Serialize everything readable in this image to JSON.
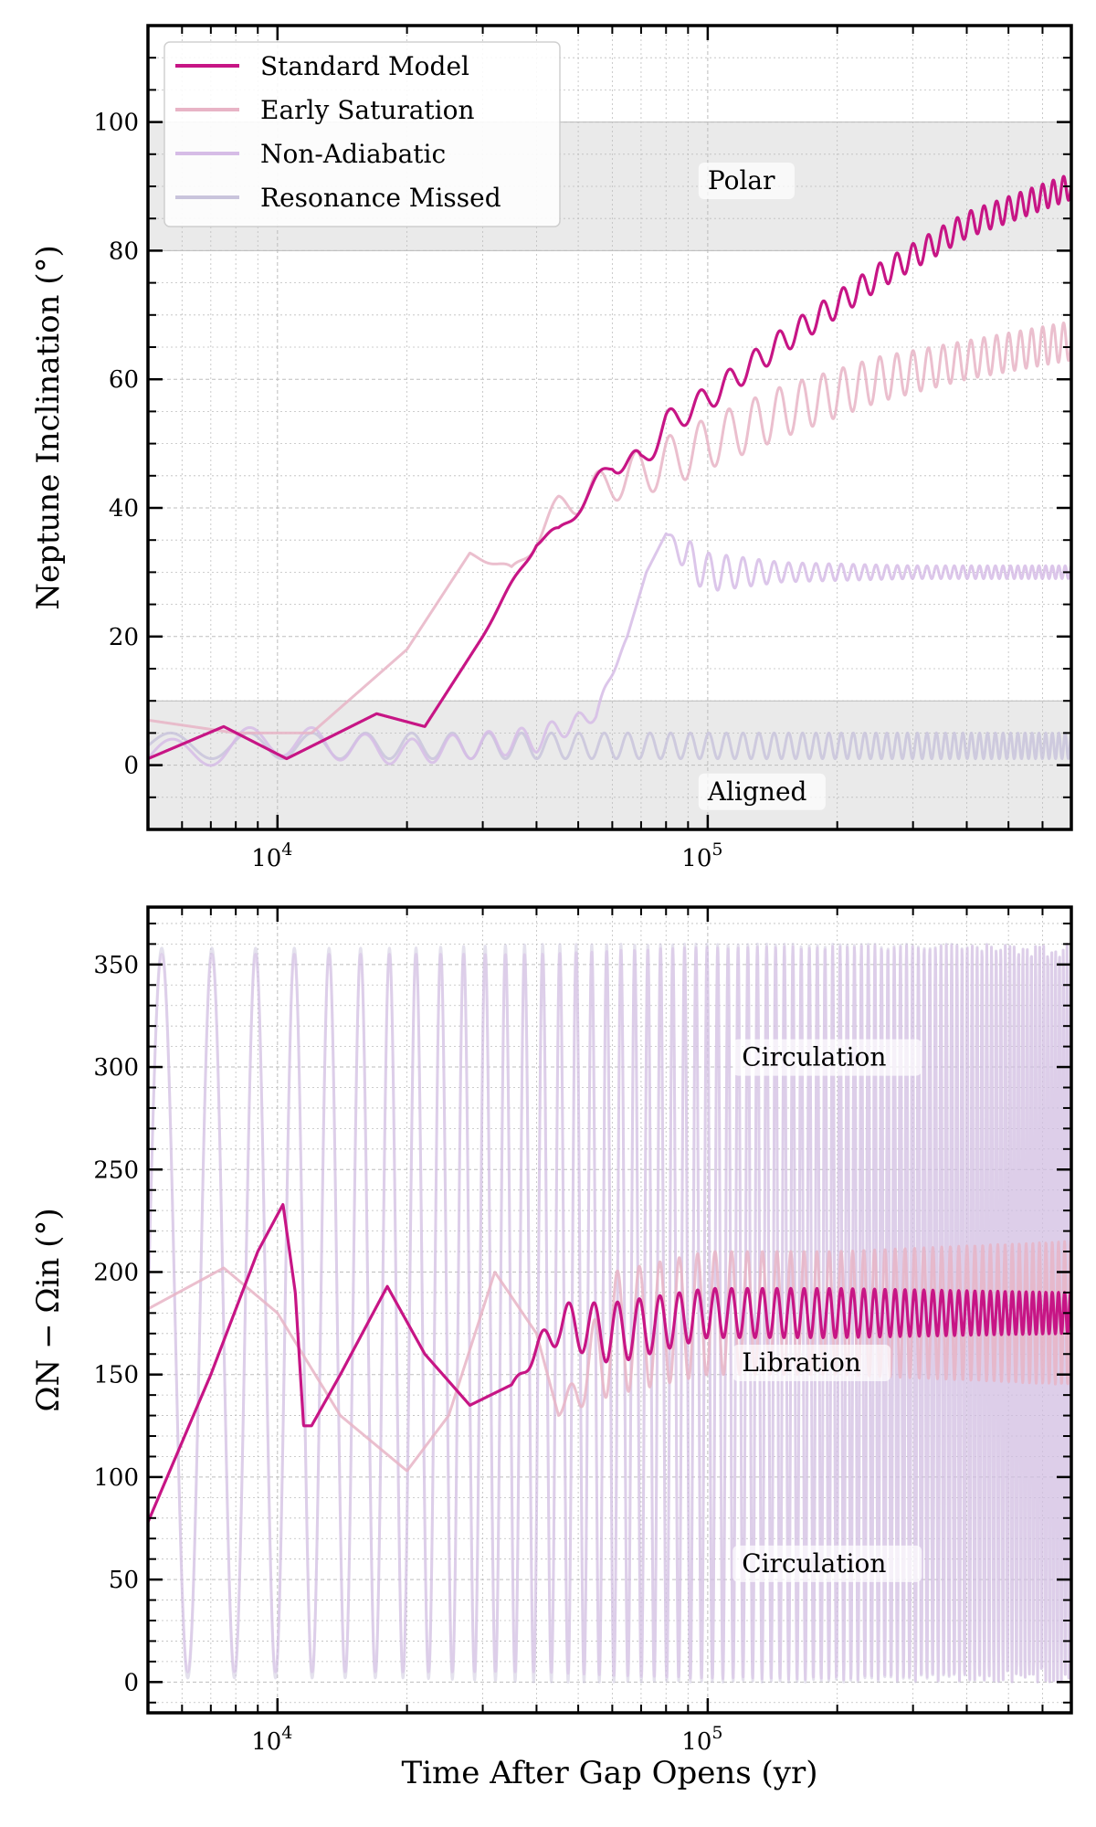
{
  "colors": {
    "standard": "#c71585",
    "early": "#e8b4c6",
    "nonadiabatic": "#d6bce6",
    "missed": "#c9c4dc",
    "region": "#d9d9d9"
  },
  "chart_data": [
    {
      "type": "line",
      "ylabel": "Neptune Inclination (°)",
      "xlabel": "",
      "xscale": "log",
      "xlim": [
        5000,
        700000
      ],
      "ylim": [
        -10,
        115
      ],
      "yticks": [
        "0",
        "20",
        "40",
        "60",
        "80",
        "100"
      ],
      "xticks": [
        {
          "base": "10",
          "exp": "4"
        },
        {
          "base": "10",
          "exp": "5"
        }
      ],
      "grid": true,
      "legend_position": "upper-left",
      "regions": [
        {
          "name": "Polar",
          "range": [
            80,
            100
          ]
        },
        {
          "name": "Aligned",
          "range": [
            -10,
            10
          ]
        }
      ],
      "annotations": [
        {
          "text": "Polar",
          "x": 100000,
          "y": 90
        },
        {
          "text": "Aligned",
          "x": 100000,
          "y": -5
        }
      ],
      "series": [
        {
          "name": "Standard Model",
          "x": [
            5000,
            7500,
            10500,
            17000,
            22000,
            30000,
            40000,
            45000,
            50000,
            60000,
            70000,
            80000,
            100000,
            150000,
            250000,
            400000,
            700000
          ],
          "y": [
            1,
            6,
            1,
            8,
            6,
            20,
            35,
            36,
            40,
            47,
            47,
            53,
            57,
            66,
            76,
            84,
            90
          ],
          "osc_amplitude": [
            0,
            0,
            0,
            0,
            0,
            0,
            1,
            1,
            1,
            1.5,
            2,
            2,
            2,
            2,
            2,
            2,
            2
          ]
        },
        {
          "name": "Early Saturation",
          "x": [
            5000,
            8000,
            12000,
            20000,
            28000,
            35000,
            45000,
            60000,
            80000,
            100000,
            150000,
            250000,
            400000,
            700000
          ],
          "y": [
            7,
            5,
            5,
            18,
            33,
            30,
            40,
            44,
            47,
            50,
            55,
            60,
            63,
            66
          ],
          "osc_amplitude": [
            0,
            0,
            0,
            0,
            0,
            1,
            2,
            3,
            4,
            4,
            4,
            3.5,
            3,
            3
          ]
        },
        {
          "name": "Non-Adiabatic",
          "x": [
            5000,
            10000,
            20000,
            40000,
            55000,
            65000,
            72000,
            80000,
            90000,
            100000,
            150000,
            300000,
            700000
          ],
          "y": [
            1,
            4,
            2,
            4,
            8,
            20,
            30,
            36,
            32,
            30,
            30,
            30,
            30
          ],
          "osc_amplitude": [
            2.5,
            2.5,
            2,
            2,
            1,
            0,
            0,
            0,
            3,
            3,
            1.5,
            1,
            1
          ]
        },
        {
          "name": "Resonance Missed",
          "x": [
            5000,
            20000,
            50000,
            100000,
            700000
          ],
          "y": [
            3,
            3,
            3,
            3,
            3
          ],
          "osc_amplitude": [
            2,
            2,
            2,
            2,
            2
          ]
        }
      ]
    },
    {
      "type": "line",
      "ylabel": "ΩN − Ωin (°)",
      "xlabel": "Time After Gap Opens (yr)",
      "xscale": "log",
      "xlim": [
        5000,
        700000
      ],
      "ylim": [
        -15,
        378
      ],
      "yticks": [
        "0",
        "50",
        "100",
        "150",
        "200",
        "250",
        "300",
        "350"
      ],
      "xticks": [
        {
          "base": "10",
          "exp": "4"
        },
        {
          "base": "10",
          "exp": "5"
        }
      ],
      "grid": true,
      "annotations": [
        {
          "text": "Circulation",
          "x": 120000,
          "y": 302
        },
        {
          "text": "Libration",
          "x": 120000,
          "y": 153
        },
        {
          "text": "Circulation",
          "x": 120000,
          "y": 55
        }
      ],
      "series": [
        {
          "name": "Standard Model",
          "x": [
            5000,
            7000,
            9000,
            10300,
            11000,
            11500,
            12000,
            14000,
            18000,
            22000,
            28000,
            35000,
            45000,
            60000,
            100000,
            200000,
            700000
          ],
          "y": [
            78,
            150,
            210,
            233,
            190,
            125,
            125,
            150,
            193,
            160,
            135,
            145,
            175,
            170,
            180,
            180,
            180
          ],
          "osc_amplitude": [
            0,
            0,
            0,
            0,
            0,
            0,
            0,
            0,
            0,
            0,
            0,
            0,
            10,
            15,
            12,
            12,
            10
          ]
        },
        {
          "name": "Early Saturation",
          "x": [
            5000,
            7500,
            10000,
            14000,
            20000,
            25000,
            32000,
            40000,
            45000,
            60000,
            100000,
            200000,
            700000
          ],
          "y": [
            182,
            202,
            180,
            130,
            103,
            130,
            200,
            170,
            130,
            170,
            180,
            180,
            180
          ],
          "osc_amplitude": [
            0,
            0,
            0,
            0,
            0,
            0,
            0,
            0,
            0,
            30,
            30,
            30,
            35
          ]
        },
        {
          "name": "Non-Adiabatic",
          "x": [
            5000,
            20000,
            40000,
            80000,
            700000
          ],
          "y": [
            180,
            180,
            180,
            180,
            180
          ],
          "osc_amplitude": [
            175,
            175,
            175,
            178,
            180
          ]
        },
        {
          "name": "Resonance Missed",
          "x": [
            5000,
            20000,
            40000,
            100000,
            700000
          ],
          "y": [
            180,
            180,
            180,
            180,
            180
          ],
          "osc_amplitude": [
            178,
            178,
            180,
            180,
            180
          ]
        }
      ]
    }
  ]
}
